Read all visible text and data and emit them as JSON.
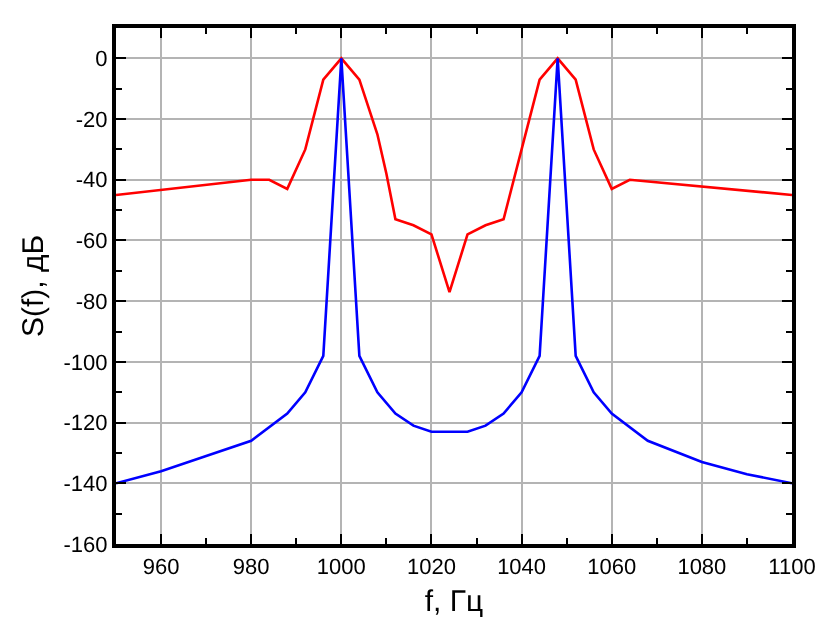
{
  "chart_data": {
    "type": "line",
    "xlabel": "f, Гц",
    "ylabel": "S(f), дБ",
    "xlim": [
      950,
      1100
    ],
    "xticks": [
      960,
      980,
      1000,
      1020,
      1040,
      1060,
      1080,
      1100
    ],
    "ylim": [
      -160,
      10
    ],
    "yticks": [
      -160,
      -140,
      -120,
      -100,
      -80,
      -60,
      -40,
      -20,
      0
    ],
    "grid": true,
    "marker": "none",
    "line_style": "solid",
    "series": [
      {
        "color": "#ff0000",
        "x": [
          950,
          980,
          984,
          988,
          992,
          996,
          1000,
          1004,
          1008,
          1010,
          1012,
          1016,
          1020,
          1024,
          1028,
          1032,
          1036,
          1040,
          1044,
          1048,
          1052,
          1056,
          1060,
          1064,
          1100
        ],
        "values": [
          -45,
          -40,
          -40,
          -43,
          -30,
          -7,
          0,
          -7,
          -25,
          -38,
          -53,
          -55,
          -58,
          -77,
          -58,
          -55,
          -53,
          -30,
          -7,
          0,
          -7,
          -30,
          -43,
          -40,
          -45
        ]
      },
      {
        "color": "#0000ff",
        "x": [
          950,
          960,
          970,
          980,
          988,
          992,
          996,
          1000,
          1004,
          1008,
          1012,
          1016,
          1020,
          1024,
          1028,
          1032,
          1036,
          1040,
          1044,
          1048,
          1052,
          1056,
          1060,
          1068,
          1080,
          1090,
          1100
        ],
        "values": [
          -140,
          -136,
          -131,
          -126,
          -117,
          -110,
          -98,
          0,
          -98,
          -110,
          -117,
          -121,
          -123,
          -123,
          -123,
          -121,
          -117,
          -110,
          -98,
          0,
          -98,
          -110,
          -117,
          -126,
          -133,
          -137,
          -140
        ]
      }
    ]
  }
}
